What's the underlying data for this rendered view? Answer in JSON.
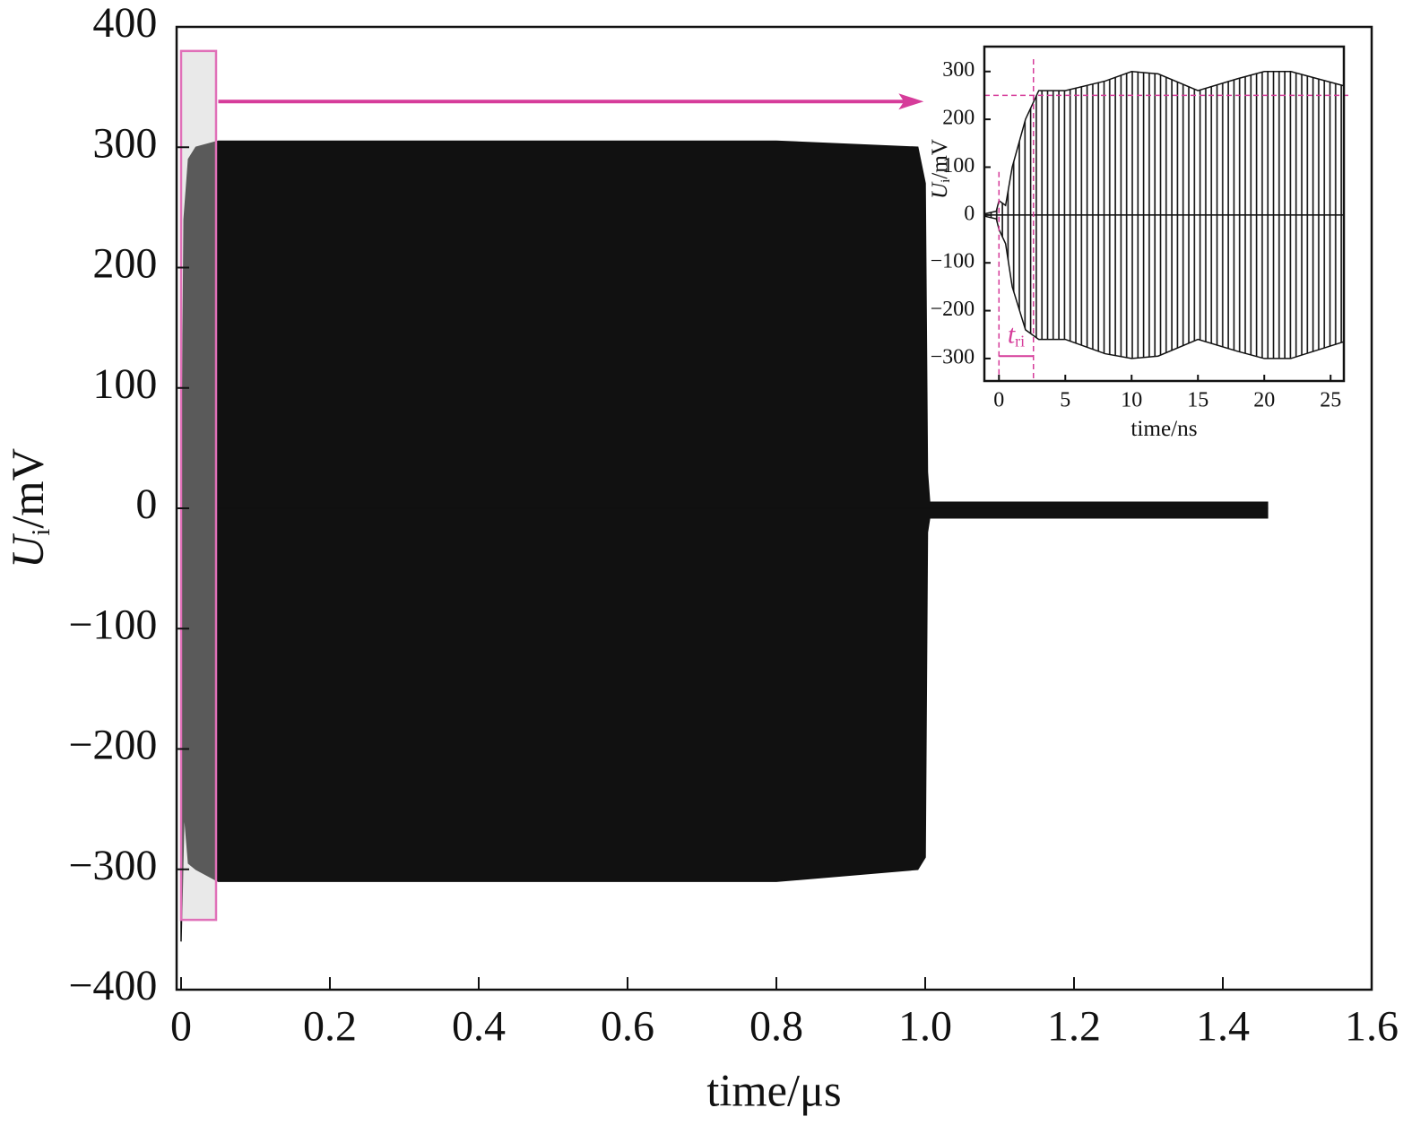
{
  "chart_data": [
    {
      "type": "band",
      "color": "#111111",
      "xlabel": "time/μs",
      "ylabel": {
        "main": "U",
        "sub": "i",
        "unit": "/mV"
      },
      "x": [
        0,
        0.004,
        0.01,
        0.02,
        0.05,
        0.2,
        0.4,
        0.6,
        0.8,
        0.99,
        1.0,
        1.003,
        1.006,
        1.2,
        1.46
      ],
      "upper": [
        -60,
        240,
        290,
        300,
        305,
        305,
        305,
        305,
        305,
        300,
        270,
        30,
        5,
        5,
        5
      ],
      "lower": [
        -360,
        -250,
        -295,
        -300,
        -310,
        -310,
        -310,
        -310,
        -310,
        -300,
        -290,
        -20,
        -8,
        -8,
        -8
      ],
      "xlim": [
        -0.006,
        1.6
      ],
      "ylim": [
        -400,
        400
      ],
      "xticks": [
        0,
        0.2,
        0.4,
        0.6,
        0.8,
        {
          "value": 1,
          "label": "1.0"
        },
        1.2,
        1.4,
        1.6
      ],
      "yticks": [
        {
          "value": -400,
          "label": "−400"
        },
        {
          "value": -300,
          "label": "−300"
        },
        {
          "value": -200,
          "label": "−200"
        },
        {
          "value": -100,
          "label": "−100"
        },
        0,
        100,
        200,
        300,
        400
      ],
      "highlight": {
        "x": [
          0,
          0.047
        ],
        "y": [
          -342,
          380
        ],
        "color": "#e070b8"
      },
      "arrow": {
        "x": [
          0.05,
          0.998
        ],
        "y": 338,
        "color": "#d63c9a"
      }
    },
    {
      "type": "band",
      "color": "#111111",
      "xlabel": "time/ns",
      "ylabel": {
        "main": "U",
        "sub": "i",
        "unit": "/mV"
      },
      "x": [
        -1,
        -0.2,
        0,
        0.5,
        1,
        2,
        3,
        5,
        8,
        10,
        12,
        15,
        18,
        20,
        22,
        26
      ],
      "upper": [
        3,
        8,
        30,
        20,
        100,
        200,
        260,
        260,
        280,
        300,
        295,
        260,
        285,
        300,
        300,
        270
      ],
      "lower": [
        -3,
        -8,
        -30,
        -60,
        -150,
        -240,
        -260,
        -260,
        -290,
        -300,
        -295,
        -260,
        -285,
        -300,
        -300,
        -265
      ],
      "xlim": [
        -1.1,
        26
      ],
      "ylim": [
        -347,
        352
      ],
      "xticks": [
        0,
        5,
        10,
        15,
        20,
        25
      ],
      "yticks": [
        {
          "value": -300,
          "label": "−300"
        },
        {
          "value": -200,
          "label": "−200"
        },
        {
          "value": -100,
          "label": "−100"
        },
        0,
        100,
        200,
        300
      ],
      "hlines": [
        250
      ],
      "vlines": [
        0,
        2.6
      ],
      "bracket": {
        "x": [
          0,
          2.6
        ],
        "y": -295,
        "label": "t",
        "label_sub": "ri",
        "color": "#d63c9a"
      }
    }
  ]
}
